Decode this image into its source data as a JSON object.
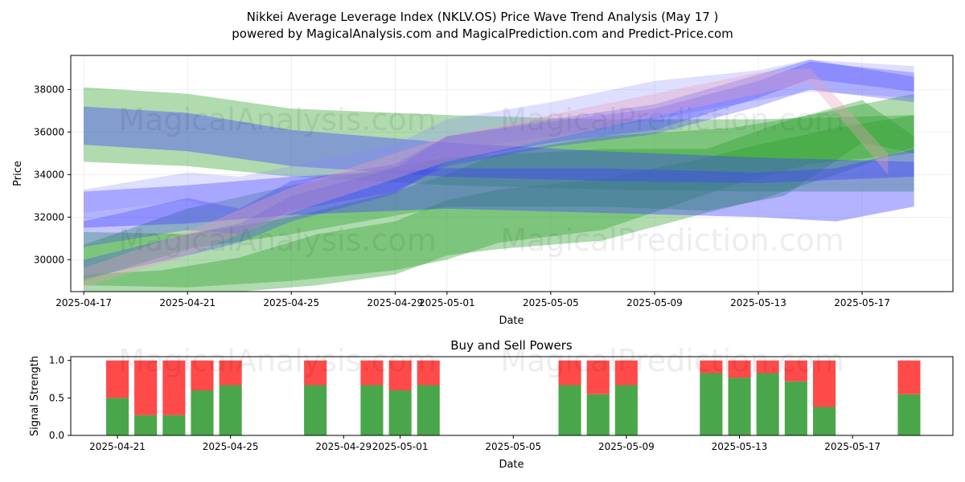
{
  "header": {
    "title": "Nikkei Average Leverage Index (NKLV.OS) Price Wave Trend Analysis (May 17 )",
    "subtitle": "powered by MagicalAnalysis.com and MagicalPrediction.com and Predict-Price.com"
  },
  "watermarks": [
    "MagicalAnalysis.com",
    "MagicalPrediction.com"
  ],
  "colors": {
    "green": "#2ca02c",
    "blue": "#4040ff",
    "lightblue": "#8a8aff",
    "pink": "#e8a0b8",
    "buy": "#4aa64a",
    "sell": "#ff4a4a"
  },
  "chart_data": [
    {
      "type": "area",
      "title": "",
      "xlabel": "Date",
      "ylabel": "Price",
      "ylim": [
        28500,
        39600
      ],
      "yticks": [
        30000,
        32000,
        34000,
        36000,
        38000
      ],
      "ytick_labels": [
        "30000",
        "32000",
        "34000",
        "36000",
        "38000"
      ],
      "xticks": [
        0,
        4,
        8,
        12,
        14,
        18,
        22,
        26,
        30
      ],
      "xtick_labels": [
        "2025-04-17",
        "2025-04-21",
        "2025-04-25",
        "2025-04-29",
        "2025-05-01",
        "2025-05-05",
        "2025-05-09",
        "2025-05-13",
        "2025-05-17"
      ],
      "xlim": [
        -0.5,
        33.5
      ],
      "note": "x values are days since 2025-04-17",
      "bands": [
        {
          "color": "green",
          "opacity": 0.38,
          "x": [
            0,
            4,
            8,
            14,
            20,
            26,
            32
          ],
          "lower": [
            34600,
            34400,
            33900,
            33500,
            33300,
            33200,
            33200
          ],
          "upper": [
            38100,
            37800,
            37100,
            36800,
            36600,
            36600,
            36800
          ]
        },
        {
          "color": "green",
          "opacity": 0.38,
          "x": [
            0,
            4,
            8,
            12,
            14,
            16,
            20,
            25,
            28,
            32
          ],
          "lower": [
            28800,
            28700,
            29000,
            29500,
            30000,
            30800,
            31400,
            33500,
            34500,
            35000
          ],
          "upper": [
            31300,
            31200,
            32000,
            33200,
            34000,
            35000,
            35800,
            36200,
            36800,
            37800
          ]
        },
        {
          "color": "green",
          "opacity": 0.38,
          "x": [
            0,
            3,
            6,
            9,
            12,
            14,
            16,
            20,
            24,
            26,
            29,
            32
          ],
          "lower": [
            27900,
            28200,
            28500,
            28800,
            29300,
            30200,
            30500,
            30900,
            32200,
            32800,
            34000,
            35300
          ],
          "upper": [
            29300,
            29500,
            30100,
            31200,
            31800,
            32800,
            33300,
            33800,
            34800,
            35400,
            36200,
            36800
          ]
        },
        {
          "color": "green",
          "opacity": 0.38,
          "x": [
            0,
            4,
            8,
            14,
            20,
            24,
            27,
            30,
            32
          ],
          "lower": [
            29000,
            30500,
            31200,
            32500,
            32500,
            32300,
            33000,
            35500,
            35000
          ],
          "upper": [
            30700,
            32400,
            33500,
            34800,
            35200,
            35200,
            36500,
            37500,
            35800
          ]
        },
        {
          "color": "blue",
          "opacity": 0.4,
          "x": [
            0,
            4,
            8,
            14,
            20,
            26,
            32
          ],
          "lower": [
            35400,
            35100,
            34400,
            33900,
            33700,
            33600,
            33900
          ],
          "upper": [
            37200,
            36900,
            36100,
            35500,
            35100,
            34800,
            34600
          ]
        },
        {
          "color": "blue",
          "opacity": 0.4,
          "x": [
            0,
            4,
            8,
            14,
            20,
            26,
            29,
            32
          ],
          "lower": [
            31500,
            31700,
            32100,
            32400,
            32200,
            32000,
            31800,
            32500
          ],
          "upper": [
            33200,
            33500,
            33900,
            34300,
            34300,
            34100,
            34300,
            35200
          ]
        },
        {
          "color": "lightblue",
          "opacity": 0.28,
          "x": [
            0,
            4,
            6,
            8,
            12,
            14,
            18,
            22,
            26,
            28,
            32
          ],
          "lower": [
            32200,
            32800,
            31900,
            33100,
            33800,
            35100,
            35800,
            36600,
            37500,
            37900,
            37600
          ],
          "upper": [
            33300,
            34100,
            33900,
            34400,
            35400,
            36600,
            37400,
            38400,
            38900,
            39400,
            39100
          ]
        },
        {
          "color": "blue",
          "opacity": 0.3,
          "x": [
            0,
            4,
            6,
            8,
            12,
            14,
            18,
            22,
            26,
            28,
            32
          ],
          "lower": [
            30600,
            31400,
            31200,
            32300,
            33200,
            34400,
            35300,
            35900,
            37200,
            38000,
            37400
          ],
          "upper": [
            31800,
            32900,
            32400,
            33700,
            34500,
            35800,
            36500,
            37100,
            38400,
            39300,
            38800
          ]
        },
        {
          "color": "blue",
          "opacity": 0.3,
          "x": [
            0,
            4,
            6,
            8,
            12,
            14,
            18,
            22,
            26,
            28,
            32
          ],
          "lower": [
            29100,
            30200,
            30800,
            31800,
            33100,
            34600,
            35500,
            36100,
            37600,
            38500,
            37900
          ],
          "upper": [
            30000,
            31200,
            31700,
            33000,
            34300,
            35800,
            36600,
            37300,
            38700,
            39400,
            38600
          ]
        },
        {
          "color": "pink",
          "opacity": 0.35,
          "x": [
            0,
            4,
            8,
            14,
            20,
            26,
            28,
            31
          ],
          "lower": [
            28700,
            30200,
            32200,
            34600,
            36200,
            37800,
            38300,
            34000
          ],
          "upper": [
            29600,
            31300,
            33400,
            35800,
            37300,
            38800,
            39000,
            35000
          ]
        }
      ]
    },
    {
      "type": "bar",
      "title": "Buy and Sell Powers",
      "xlabel": "Date",
      "ylabel": "Signal Strength",
      "ylim": [
        0,
        1.05
      ],
      "yticks": [
        0.0,
        0.5,
        1.0
      ],
      "ytick_labels": [
        "0.0",
        "0.5",
        "1.0"
      ],
      "xticks": [
        4,
        8,
        12,
        14,
        18,
        22,
        26,
        30
      ],
      "xtick_labels": [
        "2025-04-21",
        "2025-04-25",
        "2025-04-29",
        "2025-05-01",
        "2025-05-05",
        "2025-05-09",
        "2025-05-13",
        "2025-05-17"
      ],
      "xlim": [
        2.35,
        33.55
      ],
      "note": "x values are days since 2025-04-17",
      "categories": [
        4,
        5,
        6,
        7,
        8,
        11,
        13,
        14,
        15,
        20,
        21,
        22,
        25,
        26,
        27,
        28,
        29,
        32
      ],
      "series": [
        {
          "name": "Buy",
          "color": "buy",
          "values": [
            0.5,
            0.27,
            0.27,
            0.6,
            0.67,
            0.67,
            0.67,
            0.6,
            0.67,
            0.67,
            0.55,
            0.67,
            0.83,
            0.77,
            0.83,
            0.72,
            0.38,
            0.55
          ]
        },
        {
          "name": "Sell",
          "color": "sell",
          "values": [
            0.5,
            0.73,
            0.73,
            0.4,
            0.33,
            0.33,
            0.33,
            0.4,
            0.33,
            0.33,
            0.45,
            0.33,
            0.17,
            0.23,
            0.17,
            0.28,
            0.62,
            0.45
          ]
        }
      ]
    }
  ]
}
